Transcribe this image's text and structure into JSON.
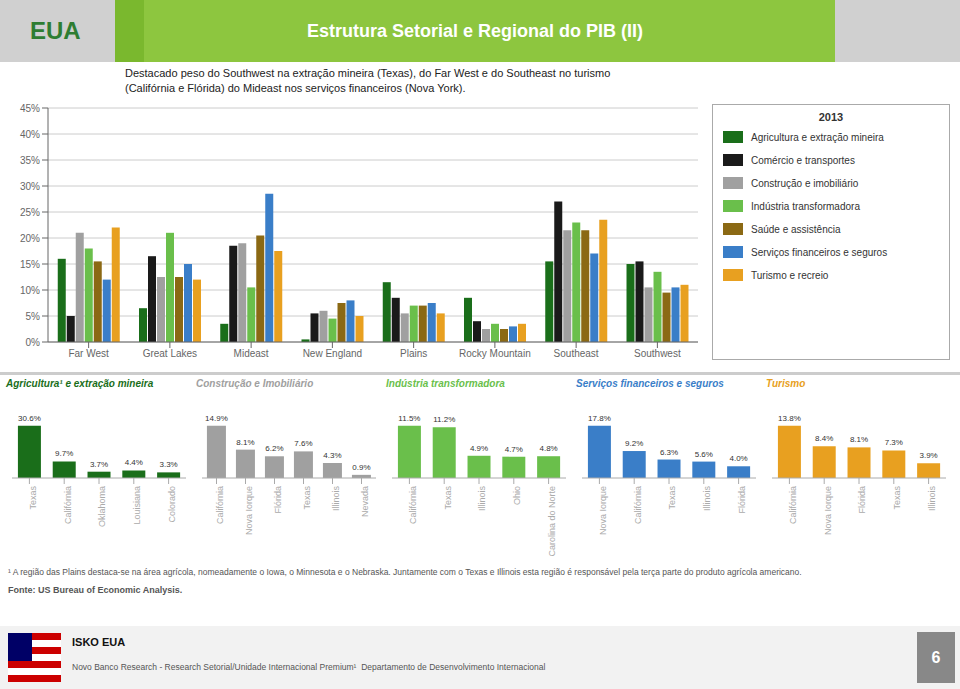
{
  "chart_data": [
    {
      "type": "bar",
      "title": "Estrutura Setorial e Regional do PIB (II)",
      "subtitle": "Destacado peso do Southwest na extração mineira (Texas), do Far West e do Southeast no turismo\n(Califórnia e Flórida) do Mideast nos serviços financeiros (Nova York).",
      "annotations": [
        "EUA",
        "2013",
        "¹ A região das Plains destaca-se na área agrícola, nomeadamente o Iowa, o Minnesota e o Nebraska. Juntamente com o Texas e Illinois esta região é responsável pela terça parte do produto agrícola americano.",
        "Fonte: US Bureau of Economic Analysis.",
        "ISKO EUA",
        "Novo Banco Research - Research Setorial/Unidade Internacional Premium¹  Departamento de Desenvolvimento Internacional",
        "6"
      ],
      "categories": [
        "Far West",
        "Great Lakes",
        "Mideast",
        "New England",
        "Plains",
        "Rocky Mountain",
        "Southeast",
        "Southwest"
      ],
      "series": [
        {
          "name": "Agricultura e extração mineira",
          "color": "#1a6e1a",
          "values": [
            16.0,
            6.5,
            3.5,
            0.5,
            11.5,
            8.5,
            15.5,
            15.0
          ]
        },
        {
          "name": "Comércio e transportes",
          "color": "#1a1a1a",
          "values": [
            5.0,
            16.5,
            18.5,
            5.5,
            8.5,
            4.0,
            27.0,
            15.5
          ]
        },
        {
          "name": "Construção e imobiliário",
          "color": "#a0a0a0",
          "values": [
            21.0,
            12.5,
            19.0,
            6.0,
            5.5,
            2.5,
            21.5,
            10.5
          ]
        },
        {
          "name": "Indústria transformadora",
          "color": "#6abf4b",
          "values": [
            18.0,
            21.0,
            10.5,
            4.5,
            7.0,
            3.5,
            23.0,
            13.5
          ]
        },
        {
          "name": "Saúde e assistência",
          "color": "#8B6914",
          "values": [
            15.5,
            12.5,
            20.5,
            7.5,
            7.0,
            2.5,
            21.5,
            9.5
          ]
        },
        {
          "name": "Serviços financeiros e seguros",
          "color": "#3a7ec8",
          "values": [
            12.0,
            15.0,
            28.5,
            8.0,
            7.5,
            3.0,
            17.0,
            10.5
          ]
        },
        {
          "name": "Turismo e recreio",
          "color": "#e8a020",
          "values": [
            22.0,
            12.0,
            17.5,
            5.0,
            5.5,
            3.5,
            23.5,
            11.0
          ]
        }
      ],
      "ylim": [
        0,
        45
      ],
      "yticks": [
        {
          "value": 0,
          "label": "0%"
        },
        {
          "value": 5,
          "label": "5%"
        },
        {
          "value": 10,
          "label": "10%"
        },
        {
          "value": 15,
          "label": "15%"
        },
        {
          "value": 20,
          "label": "20%"
        },
        {
          "value": 25,
          "label": "25%"
        },
        {
          "value": 30,
          "label": "30%"
        },
        {
          "value": 35,
          "label": "35%"
        },
        {
          "value": 40,
          "label": "40%"
        },
        {
          "value": 45,
          "label": "45%"
        }
      ],
      "grid": true,
      "legend": "right"
    },
    {
      "type": "bar",
      "title": "Agricultura¹ e extração mineira",
      "categories": [
        "Texas",
        "Califórnia",
        "Oklahoma",
        "Louisiana",
        "Colorado"
      ],
      "values": [
        30.6,
        9.7,
        3.7,
        4.4,
        3.3
      ],
      "value_labels": [
        "30.6%",
        "9.7%",
        "3.7%",
        "4.4%",
        "3.3%"
      ],
      "color": "#1a6e1a",
      "ylim": [
        0,
        42.228
      ],
      "data_labels": true,
      "tick_labels": "x",
      "grid": false
    },
    {
      "type": "bar",
      "title": "Construção e Imobiliário",
      "categories": [
        "Califórnia",
        "Nova Iorque",
        "Flórida",
        "Texas",
        "Illinois",
        "Nevada"
      ],
      "values": [
        14.9,
        8.1,
        6.2,
        7.6,
        4.3,
        0.9
      ],
      "value_labels": [
        "14.9%",
        "8.1%",
        "6.2%",
        "7.6%",
        "4.3%",
        "0.9%"
      ],
      "color": "#a0a0a0",
      "ylim": [
        0,
        20.562
      ],
      "data_labels": true,
      "tick_labels": "x",
      "grid": false
    },
    {
      "type": "bar",
      "title": "Indústria transformadora",
      "categories": [
        "Califórnia",
        "Texas",
        "Illinois",
        "Ohio",
        "Carolina do Norte"
      ],
      "values": [
        11.5,
        11.2,
        4.9,
        4.7,
        4.8
      ],
      "value_labels": [
        "11.5%",
        "11.2%",
        "4.9%",
        "4.7%",
        "4.8%"
      ],
      "color": "#6abf4b",
      "ylim": [
        0,
        15.87
      ],
      "data_labels": true,
      "tick_labels": "x",
      "grid": false
    },
    {
      "type": "bar",
      "title": "Serviços financeiros e seguros",
      "categories": [
        "Nova Iorque",
        "Califórnia",
        "Texas",
        "Illinois",
        "Flórida"
      ],
      "values": [
        17.8,
        9.2,
        6.3,
        5.6,
        4.0
      ],
      "value_labels": [
        "17.8%",
        "9.2%",
        "6.3%",
        "5.6%",
        "4.0%"
      ],
      "color": "#3a7ec8",
      "ylim": [
        0,
        24.564
      ],
      "data_labels": true,
      "tick_labels": "x",
      "grid": false
    },
    {
      "type": "bar",
      "title": "Turismo",
      "categories": [
        "Califórnia",
        "Nova Iorque",
        "Flórida",
        "Texas",
        "Illinois"
      ],
      "values": [
        13.8,
        8.4,
        8.1,
        7.3,
        3.9
      ],
      "value_labels": [
        "13.8%",
        "8.4%",
        "8.1%",
        "7.3%",
        "3.9%"
      ],
      "color": "#e8a020",
      "ylim": [
        0,
        19.044
      ],
      "data_labels": true,
      "tick_labels": "x",
      "grid": false
    }
  ]
}
